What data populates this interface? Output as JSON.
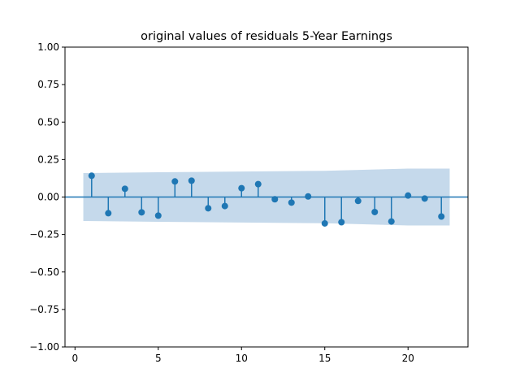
{
  "chart_data": {
    "type": "stem",
    "title": "original values of residuals 5-Year Earnings",
    "xlabel": "",
    "ylabel": "",
    "xlim": [
      -0.6,
      23.6
    ],
    "ylim": [
      -1.0,
      1.0
    ],
    "x_ticks": [
      0,
      5,
      10,
      15,
      20
    ],
    "x_tick_labels": [
      "0",
      "5",
      "10",
      "15",
      "20"
    ],
    "y_ticks": [
      1.0,
      0.75,
      0.5,
      0.25,
      0.0,
      -0.25,
      -0.5,
      -0.75,
      -1.0
    ],
    "y_tick_labels": [
      "1.00",
      "0.75",
      "0.50",
      "0.25",
      "0.00",
      "−0.25",
      "−0.50",
      "−0.75",
      "−1.00"
    ],
    "grid": false,
    "series": [
      {
        "lags": [
          1,
          2,
          3,
          4,
          5,
          6,
          7,
          8,
          9,
          10,
          11,
          12,
          13,
          14,
          15,
          16,
          17,
          18,
          19,
          20,
          21,
          22
        ],
        "values": [
          0.142,
          -0.108,
          0.055,
          -0.102,
          -0.124,
          0.104,
          0.109,
          -0.075,
          -0.06,
          0.059,
          0.086,
          -0.015,
          -0.037,
          0.004,
          -0.176,
          -0.168,
          -0.026,
          -0.1,
          -0.163,
          0.01,
          -0.01,
          -0.13
        ]
      }
    ],
    "confidence_band": {
      "x": [
        0.5,
        5,
        10,
        15,
        20,
        22.5
      ],
      "upper": [
        0.16,
        0.165,
        0.17,
        0.175,
        0.19,
        0.19
      ],
      "lower": [
        -0.16,
        -0.165,
        -0.17,
        -0.175,
        -0.19,
        -0.19
      ]
    },
    "colors": {
      "stem": "#1f77b4",
      "marker": "#1f77b4",
      "zero_line": "#1f77b4",
      "band": "#c5d9eb",
      "axes": "#000000"
    }
  }
}
